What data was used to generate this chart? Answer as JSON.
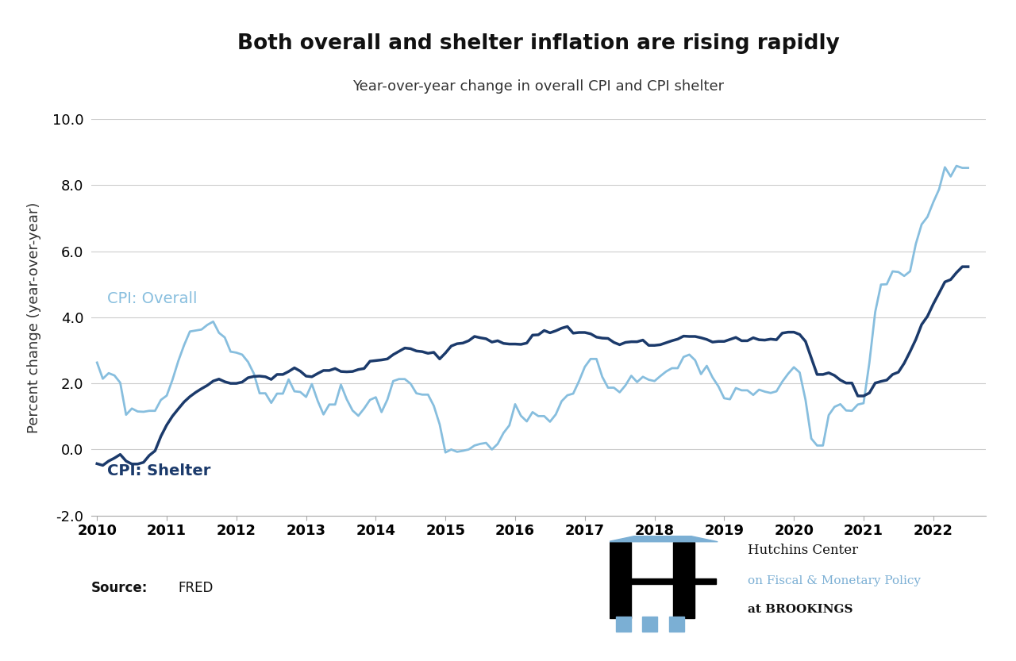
{
  "title": "Both overall and shelter inflation are rising rapidly",
  "subtitle": "Year-over-year change in overall CPI and CPI shelter",
  "ylabel": "Percent change (year-over-year)",
  "source": "FRED",
  "ylim": [
    -2.0,
    10.0
  ],
  "yticks": [
    -2.0,
    0.0,
    2.0,
    4.0,
    6.0,
    8.0,
    10.0
  ],
  "color_overall": "#87BEDE",
  "color_shelter": "#1B3A6B",
  "label_overall": "CPI: Overall",
  "label_shelter": "CPI: Shelter",
  "hutchins_text1": "Hutchins Center",
  "hutchins_text2": "on Fiscal & Monetary Policy",
  "hutchins_text3": "at BROOKINGS",
  "dates_overall": [
    2010.0,
    2010.083,
    2010.167,
    2010.25,
    2010.333,
    2010.417,
    2010.5,
    2010.583,
    2010.667,
    2010.75,
    2010.833,
    2010.917,
    2011.0,
    2011.083,
    2011.167,
    2011.25,
    2011.333,
    2011.417,
    2011.5,
    2011.583,
    2011.667,
    2011.75,
    2011.833,
    2011.917,
    2012.0,
    2012.083,
    2012.167,
    2012.25,
    2012.333,
    2012.417,
    2012.5,
    2012.583,
    2012.667,
    2012.75,
    2012.833,
    2012.917,
    2013.0,
    2013.083,
    2013.167,
    2013.25,
    2013.333,
    2013.417,
    2013.5,
    2013.583,
    2013.667,
    2013.75,
    2013.833,
    2013.917,
    2014.0,
    2014.083,
    2014.167,
    2014.25,
    2014.333,
    2014.417,
    2014.5,
    2014.583,
    2014.667,
    2014.75,
    2014.833,
    2014.917,
    2015.0,
    2015.083,
    2015.167,
    2015.25,
    2015.333,
    2015.417,
    2015.5,
    2015.583,
    2015.667,
    2015.75,
    2015.833,
    2015.917,
    2016.0,
    2016.083,
    2016.167,
    2016.25,
    2016.333,
    2016.417,
    2016.5,
    2016.583,
    2016.667,
    2016.75,
    2016.833,
    2016.917,
    2017.0,
    2017.083,
    2017.167,
    2017.25,
    2017.333,
    2017.417,
    2017.5,
    2017.583,
    2017.667,
    2017.75,
    2017.833,
    2017.917,
    2018.0,
    2018.083,
    2018.167,
    2018.25,
    2018.333,
    2018.417,
    2018.5,
    2018.583,
    2018.667,
    2018.75,
    2018.833,
    2018.917,
    2019.0,
    2019.083,
    2019.167,
    2019.25,
    2019.333,
    2019.417,
    2019.5,
    2019.583,
    2019.667,
    2019.75,
    2019.833,
    2019.917,
    2020.0,
    2020.083,
    2020.167,
    2020.25,
    2020.333,
    2020.417,
    2020.5,
    2020.583,
    2020.667,
    2020.75,
    2020.833,
    2020.917,
    2021.0,
    2021.083,
    2021.167,
    2021.25,
    2021.333,
    2021.417,
    2021.5,
    2021.583,
    2021.667,
    2021.75,
    2021.833,
    2021.917,
    2022.0,
    2022.083,
    2022.167,
    2022.25,
    2022.333,
    2022.417,
    2022.5
  ],
  "values_overall": [
    2.63,
    2.14,
    2.31,
    2.24,
    2.02,
    1.05,
    1.24,
    1.15,
    1.14,
    1.17,
    1.17,
    1.5,
    1.63,
    2.11,
    2.68,
    3.16,
    3.57,
    3.6,
    3.63,
    3.77,
    3.87,
    3.53,
    3.39,
    2.96,
    2.93,
    2.87,
    2.65,
    2.3,
    1.7,
    1.7,
    1.41,
    1.69,
    1.69,
    2.12,
    1.76,
    1.74,
    1.59,
    1.98,
    1.47,
    1.06,
    1.36,
    1.36,
    1.96,
    1.52,
    1.18,
    1.02,
    1.24,
    1.5,
    1.58,
    1.13,
    1.51,
    2.07,
    2.13,
    2.13,
    1.99,
    1.7,
    1.66,
    1.66,
    1.32,
    0.76,
    -0.09,
    0.0,
    -0.07,
    -0.04,
    0.0,
    0.12,
    0.17,
    0.2,
    0.0,
    0.17,
    0.5,
    0.73,
    1.37,
    1.02,
    0.85,
    1.13,
    1.01,
    1.01,
    0.84,
    1.06,
    1.46,
    1.64,
    1.69,
    2.07,
    2.5,
    2.74,
    2.74,
    2.2,
    1.87,
    1.87,
    1.73,
    1.94,
    2.23,
    2.04,
    2.2,
    2.11,
    2.07,
    2.22,
    2.36,
    2.46,
    2.46,
    2.8,
    2.87,
    2.7,
    2.28,
    2.53,
    2.18,
    1.91,
    1.55,
    1.52,
    1.86,
    1.79,
    1.79,
    1.65,
    1.81,
    1.75,
    1.71,
    1.76,
    2.05,
    2.29,
    2.49,
    2.33,
    1.5,
    0.33,
    0.12,
    0.12,
    1.04,
    1.29,
    1.37,
    1.18,
    1.17,
    1.36,
    1.4,
    2.62,
    4.16,
    4.99,
    5.0,
    5.39,
    5.37,
    5.25,
    5.39,
    6.22,
    6.81,
    7.04,
    7.48,
    7.87,
    8.54,
    8.26,
    8.58,
    8.52,
    8.52
  ],
  "dates_shelter": [
    2010.0,
    2010.083,
    2010.167,
    2010.25,
    2010.333,
    2010.417,
    2010.5,
    2010.583,
    2010.667,
    2010.75,
    2010.833,
    2010.917,
    2011.0,
    2011.083,
    2011.167,
    2011.25,
    2011.333,
    2011.417,
    2011.5,
    2011.583,
    2011.667,
    2011.75,
    2011.833,
    2011.917,
    2012.0,
    2012.083,
    2012.167,
    2012.25,
    2012.333,
    2012.417,
    2012.5,
    2012.583,
    2012.667,
    2012.75,
    2012.833,
    2012.917,
    2013.0,
    2013.083,
    2013.167,
    2013.25,
    2013.333,
    2013.417,
    2013.5,
    2013.583,
    2013.667,
    2013.75,
    2013.833,
    2013.917,
    2014.0,
    2014.083,
    2014.167,
    2014.25,
    2014.333,
    2014.417,
    2014.5,
    2014.583,
    2014.667,
    2014.75,
    2014.833,
    2014.917,
    2015.0,
    2015.083,
    2015.167,
    2015.25,
    2015.333,
    2015.417,
    2015.5,
    2015.583,
    2015.667,
    2015.75,
    2015.833,
    2015.917,
    2016.0,
    2016.083,
    2016.167,
    2016.25,
    2016.333,
    2016.417,
    2016.5,
    2016.583,
    2016.667,
    2016.75,
    2016.833,
    2016.917,
    2017.0,
    2017.083,
    2017.167,
    2017.25,
    2017.333,
    2017.417,
    2017.5,
    2017.583,
    2017.667,
    2017.75,
    2017.833,
    2017.917,
    2018.0,
    2018.083,
    2018.167,
    2018.25,
    2018.333,
    2018.417,
    2018.5,
    2018.583,
    2018.667,
    2018.75,
    2018.833,
    2018.917,
    2019.0,
    2019.083,
    2019.167,
    2019.25,
    2019.333,
    2019.417,
    2019.5,
    2019.583,
    2019.667,
    2019.75,
    2019.833,
    2019.917,
    2020.0,
    2020.083,
    2020.167,
    2020.25,
    2020.333,
    2020.417,
    2020.5,
    2020.583,
    2020.667,
    2020.75,
    2020.833,
    2020.917,
    2021.0,
    2021.083,
    2021.167,
    2021.25,
    2021.333,
    2021.417,
    2021.5,
    2021.583,
    2021.667,
    2021.75,
    2021.833,
    2021.917,
    2022.0,
    2022.083,
    2022.167,
    2022.25,
    2022.333,
    2022.417,
    2022.5
  ],
  "values_shelter": [
    -0.43,
    -0.48,
    -0.35,
    -0.26,
    -0.15,
    -0.35,
    -0.44,
    -0.44,
    -0.39,
    -0.18,
    -0.04,
    0.4,
    0.74,
    1.01,
    1.23,
    1.44,
    1.6,
    1.73,
    1.84,
    1.94,
    2.07,
    2.13,
    2.05,
    2.0,
    2.0,
    2.04,
    2.17,
    2.21,
    2.22,
    2.2,
    2.12,
    2.27,
    2.27,
    2.36,
    2.47,
    2.37,
    2.22,
    2.2,
    2.3,
    2.39,
    2.39,
    2.45,
    2.36,
    2.35,
    2.36,
    2.42,
    2.45,
    2.67,
    2.69,
    2.71,
    2.74,
    2.87,
    2.97,
    3.07,
    3.05,
    2.98,
    2.96,
    2.91,
    2.94,
    2.74,
    2.92,
    3.13,
    3.2,
    3.22,
    3.29,
    3.42,
    3.38,
    3.35,
    3.25,
    3.29,
    3.21,
    3.19,
    3.19,
    3.18,
    3.22,
    3.46,
    3.47,
    3.6,
    3.53,
    3.59,
    3.67,
    3.72,
    3.52,
    3.54,
    3.54,
    3.5,
    3.4,
    3.37,
    3.36,
    3.24,
    3.17,
    3.24,
    3.26,
    3.26,
    3.31,
    3.15,
    3.15,
    3.17,
    3.23,
    3.29,
    3.34,
    3.43,
    3.42,
    3.42,
    3.38,
    3.33,
    3.25,
    3.27,
    3.27,
    3.33,
    3.39,
    3.29,
    3.29,
    3.38,
    3.32,
    3.31,
    3.34,
    3.32,
    3.52,
    3.55,
    3.55,
    3.48,
    3.27,
    2.77,
    2.27,
    2.27,
    2.32,
    2.24,
    2.1,
    2.01,
    2.01,
    1.62,
    1.62,
    1.71,
    2.01,
    2.06,
    2.1,
    2.27,
    2.34,
    2.61,
    2.96,
    3.33,
    3.78,
    4.03,
    4.4,
    4.73,
    5.07,
    5.14,
    5.35,
    5.53,
    5.53
  ]
}
